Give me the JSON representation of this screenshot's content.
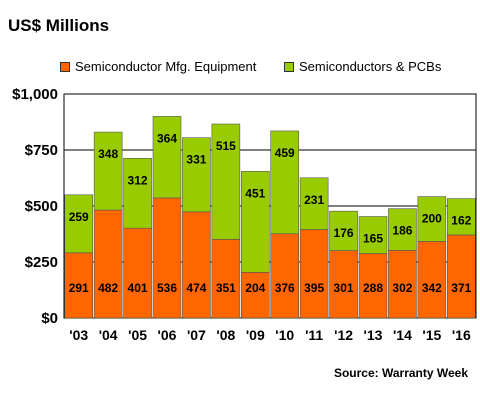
{
  "chart_data": {
    "type": "bar",
    "stacked": true,
    "title": "US$ Millions",
    "source": "Source: Warranty Week",
    "categories": [
      "'03",
      "'04",
      "'05",
      "'06",
      "'07",
      "'08",
      "'09",
      "'10",
      "'11",
      "'12",
      "'13",
      "'14",
      "'15",
      "'16"
    ],
    "series": [
      {
        "name": "Semiconductor Mfg. Equipment",
        "color": "#ff6600",
        "values": [
          291,
          482,
          401,
          536,
          474,
          351,
          204,
          376,
          395,
          301,
          288,
          302,
          342,
          371
        ]
      },
      {
        "name": "Semiconductors & PCBs",
        "color": "#99cc00",
        "values": [
          259,
          348,
          312,
          364,
          331,
          515,
          451,
          459,
          231,
          176,
          165,
          186,
          200,
          162
        ]
      }
    ],
    "y_ticks": [
      "$0",
      "$250",
      "$500",
      "$750",
      "$1,000"
    ],
    "ylim": [
      0,
      1000
    ],
    "grid": true,
    "legend_position": "top"
  }
}
